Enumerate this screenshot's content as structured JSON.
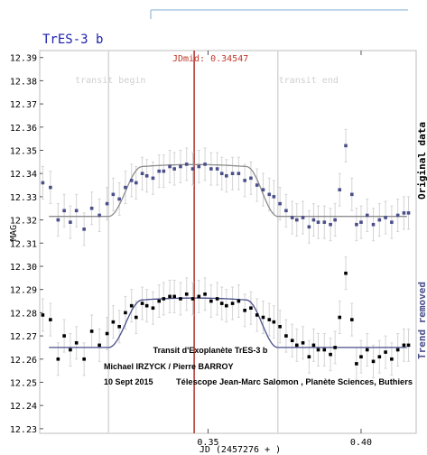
{
  "chart_data": {
    "type": "scatter",
    "title": "TrES-3 b",
    "xlabel": "JD (2457276 + )",
    "ylabel": "MAG",
    "right_label_top": "Original data",
    "right_label_bottom": "Trend removed",
    "xlim": [
      0.295,
      0.418
    ],
    "ylim": [
      12.393,
      12.228
    ],
    "x_ticks": [
      {
        "value": 0.35,
        "label": "0.35"
      },
      {
        "value": 0.4,
        "label": "0.40"
      }
    ],
    "y_ticks": [
      {
        "value": 12.23,
        "label": "12.23"
      },
      {
        "value": 12.24,
        "label": "12.24"
      },
      {
        "value": 12.25,
        "label": "12.25"
      },
      {
        "value": 12.26,
        "label": "12.26"
      },
      {
        "value": 12.27,
        "label": "12.27"
      },
      {
        "value": 12.28,
        "label": "12.28"
      },
      {
        "value": 12.29,
        "label": "12.29"
      },
      {
        "value": 12.3,
        "label": "12.30"
      },
      {
        "value": 12.31,
        "label": "12.31"
      },
      {
        "value": 12.32,
        "label": "12.32"
      },
      {
        "value": 12.33,
        "label": "12.33"
      },
      {
        "value": 12.34,
        "label": "12.34"
      },
      {
        "value": 12.35,
        "label": "12.35"
      },
      {
        "value": 12.36,
        "label": "12.36"
      },
      {
        "value": 12.37,
        "label": "12.37"
      },
      {
        "value": 12.38,
        "label": "12.38"
      },
      {
        "value": 12.39,
        "label": "12.39"
      }
    ],
    "jdmid": {
      "value": 0.34547,
      "label": "JDmid: 0.34547"
    },
    "transit_begin": {
      "value": 0.3175,
      "label": "transit begin"
    },
    "transit_end": {
      "value": 0.3728,
      "label": "transit end"
    },
    "error_bar": 0.007,
    "series": [
      {
        "name": "Original data",
        "color": "#000000",
        "model_color": "#4a4f8a",
        "model": {
          "baseline": 12.265,
          "depth": 0.0205,
          "t1": 0.3175,
          "t2": 0.3285,
          "t3": 0.3625,
          "t4": 0.3728
        },
        "x": [
          0.296,
          0.2985,
          0.301,
          0.303,
          0.305,
          0.307,
          0.3095,
          0.312,
          0.3145,
          0.317,
          0.319,
          0.321,
          0.323,
          0.325,
          0.3265,
          0.3285,
          0.33,
          0.332,
          0.334,
          0.3355,
          0.3375,
          0.339,
          0.341,
          0.343,
          0.345,
          0.347,
          0.349,
          0.351,
          0.353,
          0.3545,
          0.356,
          0.358,
          0.36,
          0.362,
          0.364,
          0.366,
          0.368,
          0.37,
          0.3715,
          0.3735,
          0.3755,
          0.3775,
          0.379,
          0.381,
          0.383,
          0.3845,
          0.386,
          0.388,
          0.39,
          0.3915,
          0.393,
          0.395,
          0.397,
          0.3985,
          0.4,
          0.402,
          0.404,
          0.406,
          0.408,
          0.41,
          0.412,
          0.414,
          0.4155
        ],
        "y": [
          12.279,
          12.277,
          12.26,
          12.27,
          12.264,
          12.267,
          12.26,
          12.272,
          12.266,
          12.271,
          12.276,
          12.274,
          12.28,
          12.283,
          12.278,
          12.284,
          12.283,
          12.282,
          12.285,
          12.286,
          12.287,
          12.287,
          12.286,
          12.288,
          12.286,
          12.287,
          12.288,
          12.285,
          12.286,
          12.284,
          12.283,
          12.284,
          12.285,
          12.281,
          12.282,
          12.279,
          12.278,
          12.277,
          12.276,
          12.274,
          12.27,
          12.268,
          12.266,
          12.267,
          12.261,
          12.266,
          12.264,
          12.264,
          12.262,
          12.265,
          12.278,
          12.297,
          12.277,
          12.258,
          12.261,
          12.264,
          12.259,
          12.261,
          12.263,
          12.26,
          12.264,
          12.266,
          12.266
        ]
      },
      {
        "name": "Trend removed",
        "color": "#4a4f8a",
        "model_color": "#8c8c8c",
        "model": {
          "baseline": 12.3215,
          "depth": 0.0215,
          "t1": 0.3175,
          "t2": 0.3285,
          "t3": 0.3625,
          "t4": 0.3728
        },
        "x": [
          0.296,
          0.2985,
          0.301,
          0.303,
          0.305,
          0.307,
          0.3095,
          0.312,
          0.3145,
          0.317,
          0.319,
          0.321,
          0.323,
          0.325,
          0.3265,
          0.3285,
          0.33,
          0.332,
          0.334,
          0.3355,
          0.3375,
          0.339,
          0.341,
          0.343,
          0.345,
          0.347,
          0.349,
          0.351,
          0.353,
          0.3545,
          0.356,
          0.358,
          0.36,
          0.362,
          0.364,
          0.366,
          0.368,
          0.37,
          0.3715,
          0.3735,
          0.3755,
          0.3775,
          0.379,
          0.381,
          0.383,
          0.3845,
          0.386,
          0.388,
          0.39,
          0.3915,
          0.393,
          0.395,
          0.397,
          0.3985,
          0.4,
          0.402,
          0.404,
          0.406,
          0.408,
          0.41,
          0.412,
          0.414,
          0.4155
        ],
        "y": [
          12.336,
          12.334,
          12.32,
          12.324,
          12.319,
          12.324,
          12.316,
          12.325,
          12.322,
          12.327,
          12.331,
          12.329,
          12.334,
          12.337,
          12.336,
          12.34,
          12.339,
          12.338,
          12.341,
          12.341,
          12.343,
          12.342,
          12.343,
          12.344,
          12.342,
          12.343,
          12.344,
          12.342,
          12.342,
          12.34,
          12.339,
          12.34,
          12.34,
          12.337,
          12.338,
          12.335,
          12.333,
          12.331,
          12.33,
          12.327,
          12.324,
          12.321,
          12.32,
          12.321,
          12.317,
          12.32,
          12.319,
          12.319,
          12.318,
          12.32,
          12.333,
          12.352,
          12.331,
          12.318,
          12.319,
          12.322,
          12.318,
          12.32,
          12.321,
          12.319,
          12.322,
          12.323,
          12.323
        ]
      }
    ],
    "annotations": [
      "Transit d'Exoplanète TrES-3 b",
      "Michael IRZYCK / Pierre BARROY",
      "10 Sept 2015",
      "Télescope Jean-Marc Salomon , Planète Sciences, Buthiers"
    ]
  }
}
